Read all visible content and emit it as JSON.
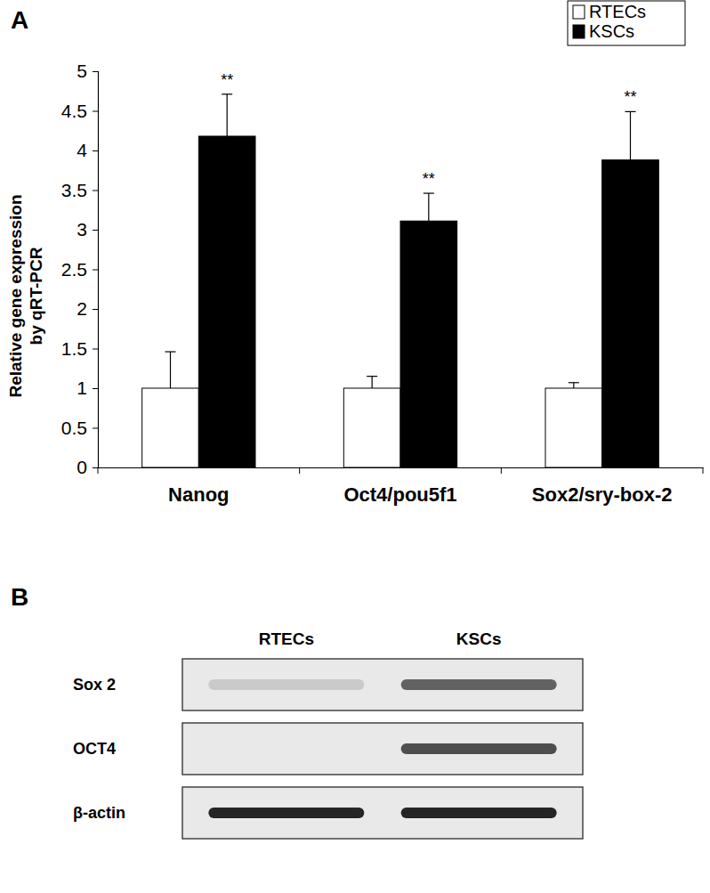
{
  "chart_data": {
    "type": "bar",
    "title": "A",
    "categories": [
      "Nanog",
      "Oct4/pou5f1",
      "Sox2/sry-box-2"
    ],
    "series": [
      {
        "name": "RTECs",
        "color": "#ffffff",
        "values": [
          1,
          1,
          1
        ],
        "errors": [
          0.46,
          0.15,
          0.07
        ]
      },
      {
        "name": "KSCs",
        "color": "#000000",
        "values": [
          4.18,
          3.11,
          3.88
        ],
        "errors": [
          0.53,
          0.35,
          0.61
        ],
        "significance": [
          "**",
          "**",
          "**"
        ]
      }
    ],
    "ylabel": [
      "Relative gene expression",
      "by qRT-PCR"
    ],
    "ylim": [
      0,
      5
    ],
    "yticks": [
      0,
      0.5,
      1,
      1.5,
      2,
      2.5,
      3,
      3.5,
      4,
      4.5,
      5
    ],
    "grid": false,
    "legend": "top-right"
  },
  "blot": {
    "label": "B",
    "lanes": [
      "RTECs",
      "KSCs"
    ],
    "rows": [
      "Sox 2",
      "OCT4",
      "β-actin"
    ],
    "intensity": [
      [
        0.15,
        0.65
      ],
      [
        0,
        0.75
      ],
      [
        0.95,
        0.95
      ]
    ]
  }
}
